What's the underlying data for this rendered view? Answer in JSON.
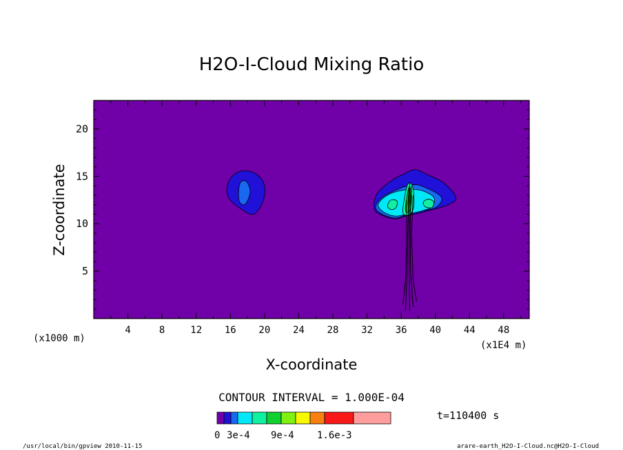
{
  "chart_data": {
    "type": "contour",
    "title": "H2O-I-Cloud Mixing Ratio",
    "xlabel": "X-coordinate",
    "ylabel": "Z-coordinate",
    "x_unit_label": "(x1E4 m)",
    "y_unit_label": "(x1000 m)",
    "xlim": [
      0,
      51
    ],
    "ylim": [
      0,
      23
    ],
    "x_ticks": [
      "4",
      "8",
      "12",
      "16",
      "20",
      "24",
      "28",
      "32",
      "36",
      "40",
      "44",
      "48"
    ],
    "x_tick_values": [
      4,
      8,
      12,
      16,
      20,
      24,
      28,
      32,
      36,
      40,
      44,
      48
    ],
    "y_ticks": [
      "5",
      "10",
      "15",
      "20"
    ],
    "y_tick_values": [
      5,
      10,
      15,
      20
    ],
    "contour_interval_label": "CONTOUR INTERVAL = 1.000E-04",
    "time_label": "t=110400 s",
    "colorbar": {
      "labels": [
        "0",
        "3e-4",
        "9e-4",
        "1.6e-3"
      ],
      "colors": [
        "#7000a8",
        "#2010d8",
        "#1868f0",
        "#00e8f8",
        "#10f0a0",
        "#10d030",
        "#80f010",
        "#f8f800",
        "#f88010",
        "#f81818",
        "#ff9c9c"
      ]
    },
    "background_color": "#7000a8",
    "features": [
      {
        "label": "cloud-left",
        "levels": [
          {
            "color": "#2010d8",
            "points": [
              [
                15.6,
                13.8
              ],
              [
                16.2,
                15.0
              ],
              [
                17.5,
                15.6
              ],
              [
                19.1,
                15.2
              ],
              [
                20.0,
                14.0
              ],
              [
                19.8,
                12.3
              ],
              [
                18.7,
                11.0
              ],
              [
                17.2,
                11.6
              ],
              [
                15.9,
                12.6
              ]
            ]
          },
          {
            "color": "#1868f0",
            "points": [
              [
                17.1,
                14.2
              ],
              [
                17.8,
                14.5
              ],
              [
                18.3,
                13.6
              ],
              [
                18.1,
                12.6
              ],
              [
                17.6,
                12.0
              ],
              [
                17.0,
                12.5
              ]
            ]
          }
        ]
      },
      {
        "label": "cloud-right",
        "levels": [
          {
            "color": "#2010d8",
            "points": [
              [
                32.8,
                11.7
              ],
              [
                33.2,
                13.2
              ],
              [
                34.8,
                14.5
              ],
              [
                36.2,
                15.2
              ],
              [
                37.6,
                15.7
              ],
              [
                39.0,
                15.2
              ],
              [
                41.0,
                14.3
              ],
              [
                42.4,
                12.8
              ],
              [
                41.5,
                12.0
              ],
              [
                38.5,
                11.2
              ],
              [
                36.5,
                10.8
              ],
              [
                35.2,
                10.5
              ],
              [
                33.5,
                11.0
              ]
            ]
          },
          {
            "color": "#1868f0",
            "points": [
              [
                33.0,
                11.8
              ],
              [
                33.8,
                12.8
              ],
              [
                35.5,
                13.6
              ],
              [
                37.2,
                14.1
              ],
              [
                38.6,
                13.9
              ],
              [
                40.7,
                12.8
              ],
              [
                40.0,
                11.7
              ],
              [
                38.0,
                11.3
              ],
              [
                36.5,
                10.9
              ],
              [
                35.2,
                10.6
              ],
              [
                33.6,
                11.1
              ]
            ]
          },
          {
            "color": "#00e8f8",
            "points": [
              [
                33.3,
                12.0
              ],
              [
                34.2,
                12.9
              ],
              [
                35.5,
                13.4
              ],
              [
                37.0,
                13.6
              ],
              [
                38.4,
                13.5
              ],
              [
                39.8,
                12.8
              ],
              [
                39.6,
                11.8
              ],
              [
                38.2,
                11.3
              ],
              [
                36.6,
                11.0
              ],
              [
                35.3,
                10.8
              ],
              [
                34.0,
                11.2
              ]
            ]
          },
          {
            "color": "#10f0a0",
            "points": [
              [
                34.4,
                11.9
              ],
              [
                34.8,
                12.5
              ],
              [
                35.5,
                12.4
              ],
              [
                35.4,
                11.7
              ],
              [
                34.8,
                11.5
              ]
            ]
          },
          {
            "color": "#10f0a0",
            "points": [
              [
                38.6,
                12.3
              ],
              [
                39.2,
                12.6
              ],
              [
                39.8,
                12.3
              ],
              [
                39.6,
                11.7
              ],
              [
                38.8,
                11.8
              ]
            ]
          },
          {
            "color": "#10f0a0",
            "points": [
              [
                36.2,
                11.2
              ],
              [
                36.4,
                12.8
              ],
              [
                36.7,
                14.0
              ],
              [
                37.0,
                14.3
              ],
              [
                37.3,
                14.0
              ],
              [
                37.5,
                12.8
              ],
              [
                37.4,
                11.5
              ],
              [
                36.8,
                10.9
              ]
            ]
          },
          {
            "color": "#10d030",
            "points": [
              [
                36.5,
                11.5
              ],
              [
                36.7,
                13.0
              ],
              [
                36.95,
                13.9
              ],
              [
                37.2,
                13.0
              ],
              [
                37.1,
                11.6
              ],
              [
                36.8,
                11.2
              ]
            ]
          },
          {
            "color": "#80f010",
            "points": [
              [
                36.8,
                12.0
              ],
              [
                36.9,
                13.4
              ],
              [
                37.05,
                13.2
              ],
              [
                37.0,
                12.0
              ]
            ]
          }
        ],
        "stem_lines": [
          [
            [
              36.5,
              0.8
            ],
            [
              36.7,
              5.0
            ],
            [
              36.8,
              10.0
            ],
            [
              36.9,
              13.8
            ]
          ],
          [
            [
              37.0,
              0.8
            ],
            [
              36.95,
              5.0
            ],
            [
              36.95,
              10.5
            ],
            [
              37.0,
              14.4
            ]
          ],
          [
            [
              37.4,
              1.2
            ],
            [
              37.1,
              5.0
            ],
            [
              37.05,
              10.0
            ],
            [
              37.2,
              14.0
            ]
          ],
          [
            [
              36.2,
              1.5
            ],
            [
              36.5,
              4.0
            ],
            [
              36.65,
              8.5
            ],
            [
              36.6,
              12.5
            ]
          ],
          [
            [
              37.8,
              1.8
            ],
            [
              37.4,
              4.0
            ],
            [
              37.2,
              9.0
            ],
            [
              37.4,
              13.0
            ]
          ]
        ]
      }
    ]
  },
  "footer": {
    "left": "/usr/local/bin/gpview  2010-11-15",
    "right": "arare-earth_H2O-I-Cloud.nc@H2O-I-Cloud"
  }
}
